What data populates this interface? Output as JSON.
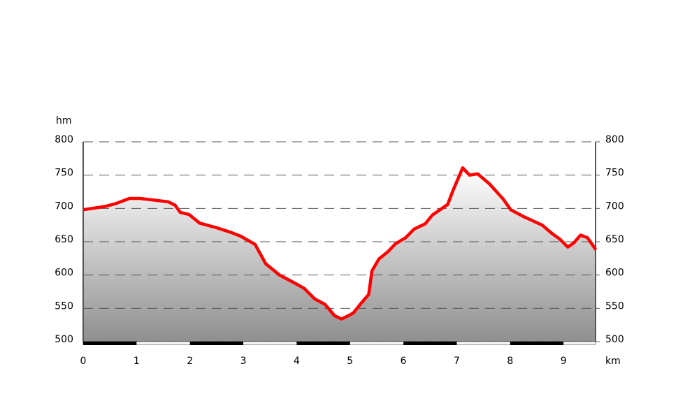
{
  "chart_data": {
    "type": "area-line",
    "y_label": "hm",
    "x_label": "km",
    "x": [
      0,
      0.41,
      0.6,
      0.87,
      1.06,
      1.59,
      1.72,
      1.82,
      1.98,
      2.18,
      2.5,
      2.77,
      2.96,
      3.22,
      3.42,
      3.68,
      3.94,
      4.14,
      4.34,
      4.53,
      4.71,
      4.84,
      4.97,
      5.06,
      5.19,
      5.35,
      5.41,
      5.54,
      5.71,
      5.85,
      6.04,
      6.2,
      6.41,
      6.54,
      6.83,
      6.93,
      7.11,
      7.24,
      7.39,
      7.61,
      7.87,
      8.01,
      8.27,
      8.6,
      8.79,
      8.93,
      9.08,
      9.19,
      9.32,
      9.45,
      9.58,
      9.6
    ],
    "values": [
      698,
      703,
      707,
      715,
      715,
      710,
      705,
      694,
      691,
      678,
      671,
      664,
      658,
      646,
      617,
      600,
      589,
      580,
      564,
      556,
      539,
      534,
      539,
      543,
      556,
      571,
      606,
      624,
      635,
      647,
      656,
      669,
      677,
      690,
      706,
      727,
      761,
      750,
      752,
      737,
      714,
      698,
      687,
      675,
      662,
      654,
      642,
      648,
      660,
      656,
      641,
      638
    ],
    "color": "#ff0000",
    "xlim": [
      0,
      9.6
    ],
    "xticks": [
      0,
      1,
      2,
      3,
      4,
      5,
      6,
      7,
      8,
      9
    ],
    "ylim": [
      500,
      800
    ],
    "yticks": [
      500,
      550,
      600,
      650,
      700,
      750,
      800
    ],
    "y2lim": [
      500,
      800
    ],
    "y2ticks": [
      500,
      550,
      600,
      650,
      700,
      750,
      800
    ],
    "grid": true
  }
}
